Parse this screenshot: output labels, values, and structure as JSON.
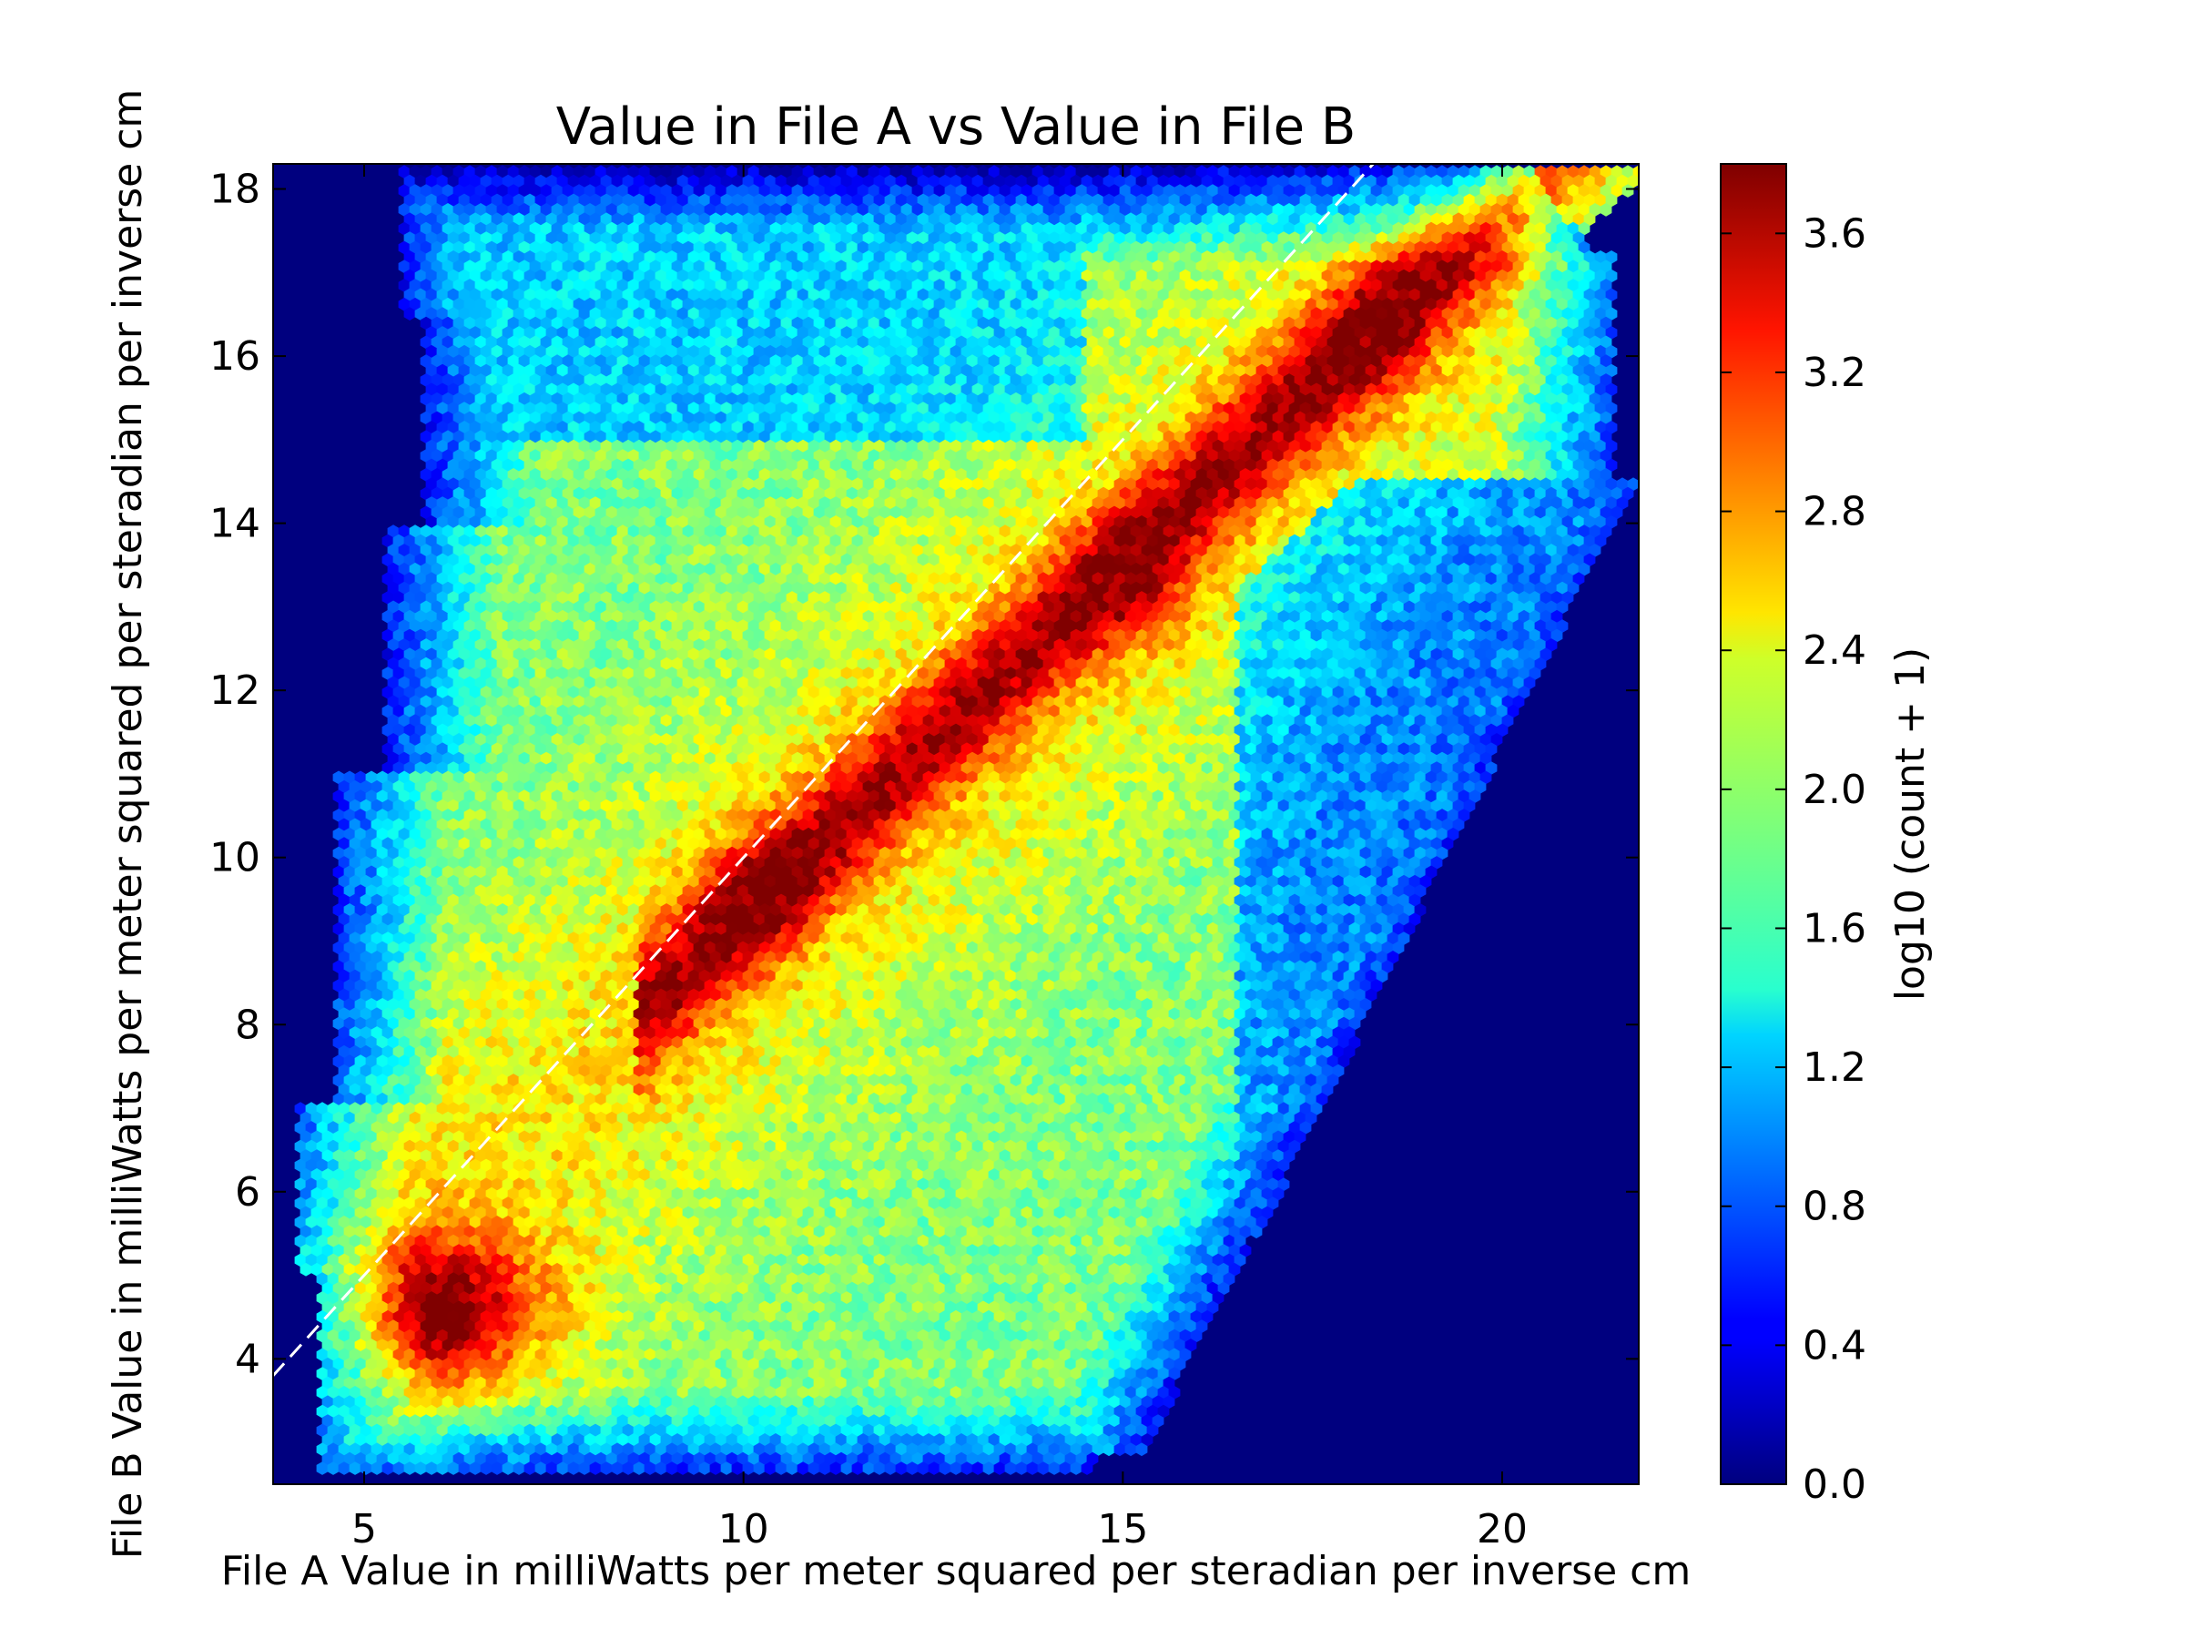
{
  "chart_data": {
    "type": "heatmap",
    "subtype": "hexbin",
    "title": "Value in File A vs Value in File B",
    "xlabel": "File A Value in milliWatts per meter squared per steradian per inverse cm",
    "ylabel": "File B Value in milliWatts per meter squared per steradian per inverse cm",
    "xlim": [
      3.8,
      21.8
    ],
    "ylim": [
      2.5,
      18.3
    ],
    "x_ticks": [
      5,
      10,
      15,
      20
    ],
    "y_ticks": [
      4,
      6,
      8,
      10,
      12,
      14,
      16,
      18
    ],
    "x_tick_labels": [
      "5",
      "10",
      "15",
      "20"
    ],
    "y_tick_labels": [
      "4",
      "6",
      "8",
      "10",
      "12",
      "14",
      "16",
      "18"
    ],
    "grid": false,
    "reference_line": {
      "style": "dashed",
      "color": "#ffffff",
      "from": [
        3.8,
        3.8
      ],
      "to": [
        18.3,
        18.3
      ]
    },
    "colorbar": {
      "label": "log10 (count + 1)",
      "range": [
        0.0,
        3.8
      ],
      "ticks": [
        0.0,
        0.4,
        0.8,
        1.2,
        1.6,
        2.0,
        2.4,
        2.8,
        3.2,
        3.6
      ],
      "tick_labels": [
        "0.0",
        "0.4",
        "0.8",
        "1.2",
        "1.6",
        "2.0",
        "2.4",
        "2.8",
        "3.2",
        "3.6"
      ],
      "colormap": "jet"
    },
    "background_color": "#00007f",
    "density_peaks": [
      {
        "x": 18.3,
        "y": 16.2,
        "value": 3.75
      },
      {
        "x": 10.2,
        "y": 9.6,
        "value": 3.3
      },
      {
        "x": 6.0,
        "y": 4.5,
        "value": 3.1
      },
      {
        "x": 15.2,
        "y": 13.2,
        "value": 3.1
      }
    ]
  }
}
